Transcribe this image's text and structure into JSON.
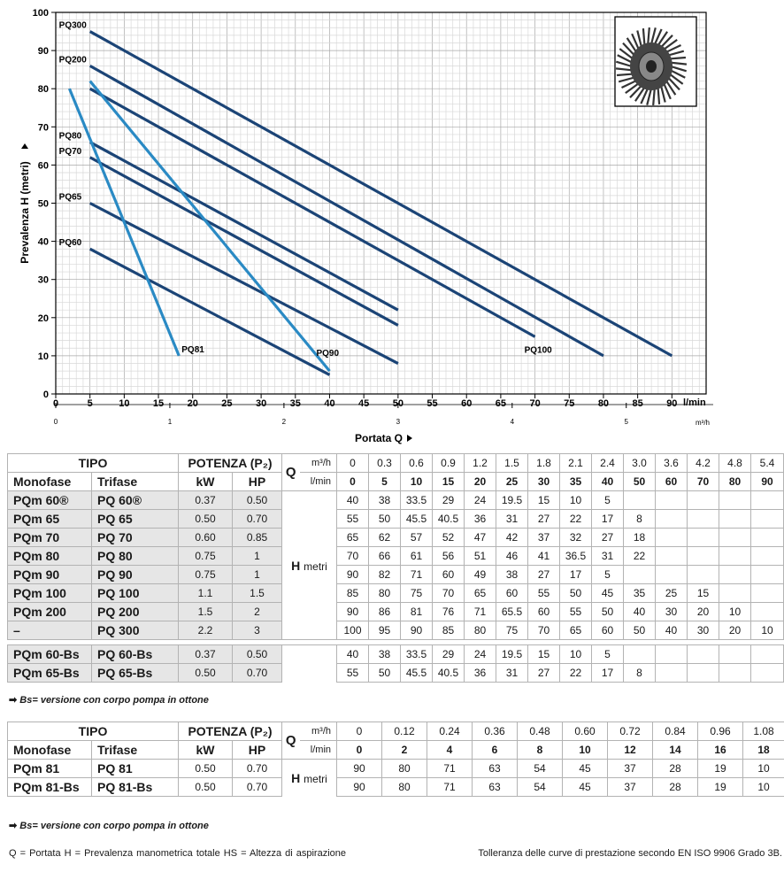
{
  "chart_data": {
    "type": "line",
    "xlabel": "Portata Q",
    "ylabel": "Prevalenza H (metri)",
    "x_unit": "l/min",
    "x_unit_secondary": "m³/h",
    "xlim": [
      0,
      95
    ],
    "ylim": [
      0,
      100
    ],
    "x_ticks": [
      0,
      5,
      10,
      15,
      20,
      25,
      30,
      35,
      40,
      45,
      50,
      55,
      60,
      65,
      70,
      75,
      80,
      85,
      90
    ],
    "y_ticks": [
      0,
      10,
      20,
      30,
      40,
      50,
      60,
      70,
      80,
      90,
      100
    ],
    "x_ticks_secondary": [
      0,
      1,
      2,
      3,
      4,
      5
    ],
    "series": [
      {
        "name": "PQ300",
        "label_at": "start",
        "x": [
          5,
          90
        ],
        "y": [
          95,
          10
        ]
      },
      {
        "name": "PQ200",
        "label_at": "start",
        "x": [
          5,
          80
        ],
        "y": [
          86,
          10
        ]
      },
      {
        "name": "PQ100",
        "label_at": "end",
        "x": [
          5,
          70
        ],
        "y": [
          80,
          15
        ]
      },
      {
        "name": "PQ80",
        "label_at": "start",
        "x": [
          5,
          50
        ],
        "y": [
          66,
          22
        ]
      },
      {
        "name": "PQ70",
        "label_at": "start",
        "x": [
          5,
          50
        ],
        "y": [
          62,
          18
        ]
      },
      {
        "name": "PQ65",
        "label_at": "start",
        "x": [
          5,
          50
        ],
        "y": [
          50,
          8
        ]
      },
      {
        "name": "PQ60",
        "label_at": "start",
        "x": [
          5,
          40
        ],
        "y": [
          38,
          5
        ]
      },
      {
        "name": "PQ90",
        "label_at": "end",
        "x": [
          5,
          40
        ],
        "y": [
          82,
          6
        ]
      },
      {
        "name": "PQ81",
        "label_at": "end",
        "x": [
          2,
          18
        ],
        "y": [
          80,
          10
        ]
      }
    ]
  },
  "table1": {
    "head": {
      "tipo": "TIPO",
      "potenza": "POTENZA (P₂)",
      "monofase": "Monofase",
      "trifase": "Trifase",
      "kw": "kW",
      "hp": "HP",
      "q": "Q",
      "m3h": "m³/h",
      "lmin": "l/min",
      "h": "H",
      "metri": "metri"
    },
    "m3h_values": [
      "0",
      "0.3",
      "0.6",
      "0.9",
      "1.2",
      "1.5",
      "1.8",
      "2.1",
      "2.4",
      "3.0",
      "3.6",
      "4.2",
      "4.8",
      "5.4"
    ],
    "lmin_values": [
      "0",
      "5",
      "10",
      "15",
      "20",
      "25",
      "30",
      "35",
      "40",
      "50",
      "60",
      "70",
      "80",
      "90"
    ],
    "rows": [
      {
        "mono": "PQm 60®",
        "tri": "PQ 60®",
        "kw": "0.37",
        "hp": "0.50",
        "h": [
          "40",
          "38",
          "33.5",
          "29",
          "24",
          "19.5",
          "15",
          "10",
          "5",
          "",
          "",
          "",
          "",
          ""
        ]
      },
      {
        "mono": "PQm 65",
        "tri": "PQ 65",
        "kw": "0.50",
        "hp": "0.70",
        "h": [
          "55",
          "50",
          "45.5",
          "40.5",
          "36",
          "31",
          "27",
          "22",
          "17",
          "8",
          "",
          "",
          "",
          ""
        ]
      },
      {
        "mono": "PQm 70",
        "tri": "PQ 70",
        "kw": "0.60",
        "hp": "0.85",
        "h": [
          "65",
          "62",
          "57",
          "52",
          "47",
          "42",
          "37",
          "32",
          "27",
          "18",
          "",
          "",
          "",
          ""
        ]
      },
      {
        "mono": "PQm 80",
        "tri": "PQ 80",
        "kw": "0.75",
        "hp": "1",
        "h": [
          "70",
          "66",
          "61",
          "56",
          "51",
          "46",
          "41",
          "36.5",
          "31",
          "22",
          "",
          "",
          "",
          ""
        ]
      },
      {
        "mono": "PQm 90",
        "tri": "PQ 90",
        "kw": "0.75",
        "hp": "1",
        "h": [
          "90",
          "82",
          "71",
          "60",
          "49",
          "38",
          "27",
          "17",
          "5",
          "",
          "",
          "",
          "",
          ""
        ]
      },
      {
        "mono": "PQm 100",
        "tri": "PQ 100",
        "kw": "1.1",
        "hp": "1.5",
        "h": [
          "85",
          "80",
          "75",
          "70",
          "65",
          "60",
          "55",
          "50",
          "45",
          "35",
          "25",
          "15",
          "",
          ""
        ]
      },
      {
        "mono": "PQm 200",
        "tri": "PQ 200",
        "kw": "1.5",
        "hp": "2",
        "h": [
          "90",
          "86",
          "81",
          "76",
          "71",
          "65.5",
          "60",
          "55",
          "50",
          "40",
          "30",
          "20",
          "10",
          ""
        ]
      },
      {
        "mono": "–",
        "tri": "PQ 300",
        "kw": "2.2",
        "hp": "3",
        "h": [
          "100",
          "95",
          "90",
          "85",
          "80",
          "75",
          "70",
          "65",
          "60",
          "50",
          "40",
          "30",
          "20",
          "10"
        ]
      }
    ],
    "bs_rows": [
      {
        "mono": "PQm 60-Bs",
        "tri": "PQ 60-Bs",
        "kw": "0.37",
        "hp": "0.50",
        "h": [
          "40",
          "38",
          "33.5",
          "29",
          "24",
          "19.5",
          "15",
          "10",
          "5",
          "",
          "",
          "",
          "",
          ""
        ]
      },
      {
        "mono": "PQm 65-Bs",
        "tri": "PQ 65-Bs",
        "kw": "0.50",
        "hp": "0.70",
        "h": [
          "55",
          "50",
          "45.5",
          "40.5",
          "36",
          "31",
          "27",
          "22",
          "17",
          "8",
          "",
          "",
          "",
          ""
        ]
      }
    ],
    "note": "Bs= versione con corpo pompa in ottone"
  },
  "table2": {
    "head": {
      "tipo": "TIPO",
      "potenza": "POTENZA (P₂)",
      "monofase": "Monofase",
      "trifase": "Trifase",
      "kw": "kW",
      "hp": "HP",
      "q": "Q",
      "m3h": "m³/h",
      "lmin": "l/min",
      "h": "H",
      "metri": "metri"
    },
    "m3h_values": [
      "0",
      "0.12",
      "0.24",
      "0.36",
      "0.48",
      "0.60",
      "0.72",
      "0.84",
      "0.96",
      "1.08"
    ],
    "lmin_values": [
      "0",
      "2",
      "4",
      "6",
      "8",
      "10",
      "12",
      "14",
      "16",
      "18"
    ],
    "rows": [
      {
        "mono": "PQm 81",
        "tri": "PQ 81",
        "kw": "0.50",
        "hp": "0.70",
        "h": [
          "90",
          "80",
          "71",
          "63",
          "54",
          "45",
          "37",
          "28",
          "19",
          "10"
        ]
      },
      {
        "mono": "PQm 81-Bs",
        "tri": "PQ 81-Bs",
        "kw": "0.50",
        "hp": "0.70",
        "h": [
          "90",
          "80",
          "71",
          "63",
          "54",
          "45",
          "37",
          "28",
          "19",
          "10"
        ]
      }
    ],
    "note": "Bs= versione con corpo pompa in ottone"
  },
  "footer": {
    "legend": "Q = Portata  H = Prevalenza manometrica totale  HS = Altezza di aspirazione",
    "tolerance": "Tolleranza delle curve di prestazione secondo EN ISO 9906 Grado 3B."
  },
  "colors": {
    "dark_line": "#1b4476",
    "light_line": "#2a8ac4",
    "grid": "#c8c8c8",
    "shade": "#e6e6e6"
  }
}
